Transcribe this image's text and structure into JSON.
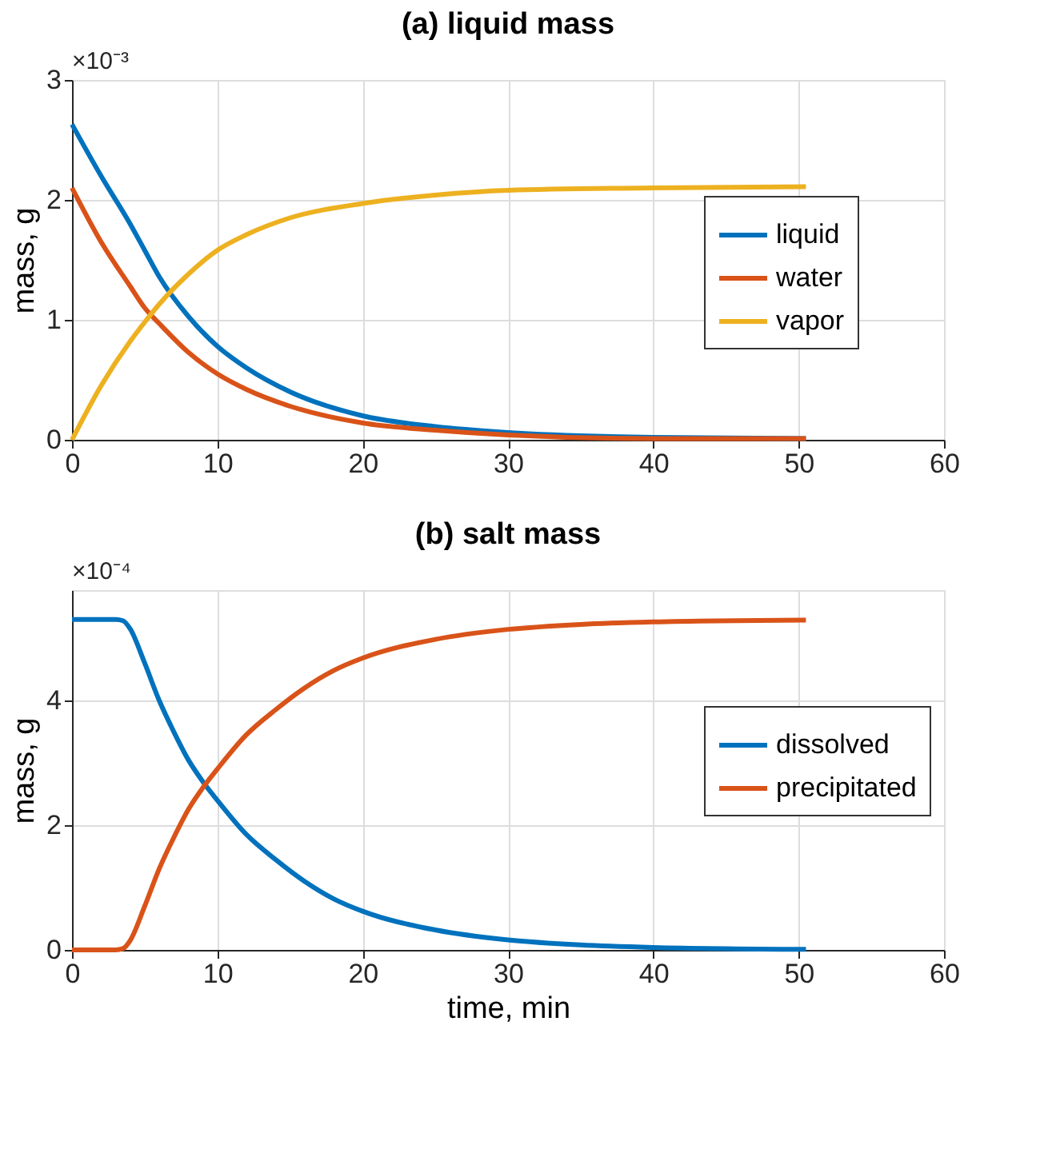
{
  "chart_data": [
    {
      "type": "line",
      "title": "(a) liquid mass",
      "ylabel": "mass, g",
      "annotations": [
        "×10⁻³"
      ],
      "xlim": [
        0,
        60
      ],
      "xticks": [
        0,
        10,
        20,
        30,
        40,
        50,
        60
      ],
      "ylim": [
        0,
        3
      ],
      "yticks": [
        0,
        1,
        2,
        3
      ],
      "grid": true,
      "legend": "right",
      "x": [
        0,
        2,
        4,
        5,
        6,
        8,
        10,
        12,
        15,
        20,
        25,
        30,
        40,
        50.5
      ],
      "series": [
        {
          "name": "liquid",
          "color": "#0072bd",
          "values": [
            2.63,
            2.2,
            1.8,
            1.58,
            1.36,
            1.03,
            0.78,
            0.6,
            0.4,
            0.2,
            0.11,
            0.06,
            0.02,
            0.01
          ]
        },
        {
          "name": "water",
          "color": "#d95319",
          "values": [
            2.1,
            1.65,
            1.28,
            1.1,
            0.97,
            0.73,
            0.55,
            0.42,
            0.28,
            0.14,
            0.08,
            0.04,
            0.01,
            0.01
          ]
        },
        {
          "name": "vapor",
          "color": "#edb120",
          "values": [
            0,
            0.45,
            0.82,
            0.98,
            1.13,
            1.38,
            1.58,
            1.71,
            1.85,
            1.97,
            2.04,
            2.08,
            2.1,
            2.11
          ]
        }
      ]
    },
    {
      "type": "line",
      "title": "(b) salt mass",
      "xlabel": "time, min",
      "ylabel": "mass, g",
      "annotations": [
        "×10⁻⁴"
      ],
      "xlim": [
        0,
        60
      ],
      "xticks": [
        0,
        10,
        20,
        30,
        40,
        50,
        60
      ],
      "ylim": [
        0,
        5.77
      ],
      "yticks": [
        0,
        2,
        4
      ],
      "grid": true,
      "legend": "right",
      "x": [
        0,
        3,
        3.5,
        4,
        5,
        6,
        7,
        8,
        9,
        10,
        12,
        14,
        16,
        18,
        20,
        25,
        30,
        35,
        40,
        50.5
      ],
      "series": [
        {
          "name": "dissolved",
          "color": "#0072bd",
          "values": [
            5.3,
            5.3,
            5.28,
            5.15,
            4.6,
            4.0,
            3.5,
            3.05,
            2.7,
            2.4,
            1.85,
            1.45,
            1.1,
            0.82,
            0.62,
            0.32,
            0.16,
            0.08,
            0.04,
            0.01
          ]
        },
        {
          "name": "precipitated",
          "color": "#d95319",
          "values": [
            0,
            0,
            0.02,
            0.15,
            0.7,
            1.3,
            1.8,
            2.25,
            2.6,
            2.9,
            3.45,
            3.85,
            4.2,
            4.48,
            4.68,
            4.98,
            5.14,
            5.22,
            5.26,
            5.29
          ]
        }
      ]
    }
  ]
}
